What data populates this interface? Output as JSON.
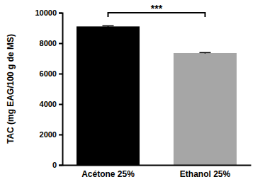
{
  "chart_data": {
    "type": "bar",
    "y_label": "TAC (mg EAG/100 g de MS)",
    "categories": [
      "Acétone 25%",
      "Ethanol 25%"
    ],
    "values": [
      9100,
      7350
    ],
    "errors": [
      40,
      30
    ],
    "colors": [
      "#000000",
      "#a6a6a6"
    ],
    "annotation": "***",
    "ylim": [
      0,
      10000
    ],
    "yticks": [
      0,
      2000,
      4000,
      6000,
      8000,
      10000
    ],
    "grid": false
  }
}
